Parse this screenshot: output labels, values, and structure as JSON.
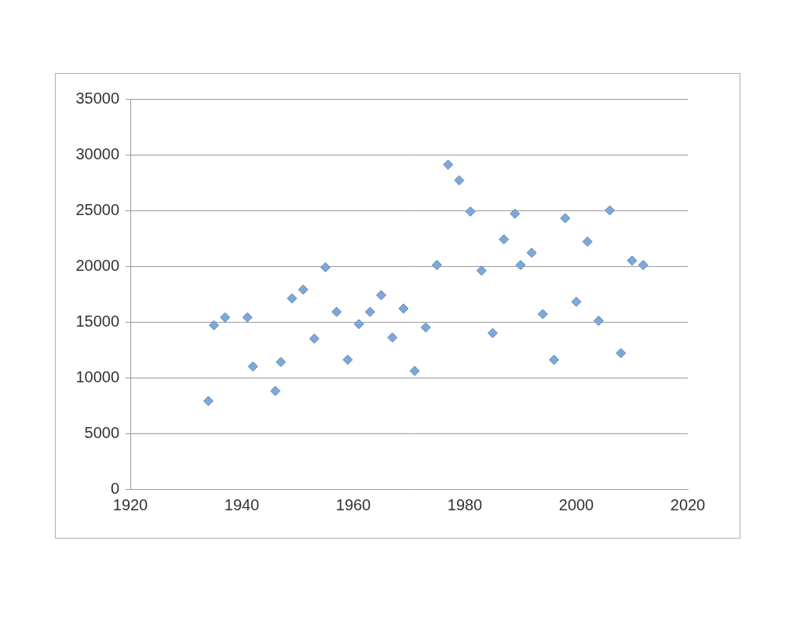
{
  "chart_data": {
    "type": "scatter",
    "x": [
      1934,
      1935,
      1937,
      1941,
      1942,
      1946,
      1947,
      1949,
      1951,
      1953,
      1955,
      1957,
      1959,
      1961,
      1963,
      1965,
      1967,
      1969,
      1971,
      1973,
      1975,
      1977,
      1979,
      1981,
      1983,
      1985,
      1987,
      1989,
      1990,
      1992,
      1994,
      1996,
      1998,
      2000,
      2002,
      2004,
      2006,
      2008,
      2010,
      2012
    ],
    "values": [
      7900,
      14700,
      15400,
      15400,
      11000,
      8800,
      11400,
      17100,
      17900,
      13500,
      19900,
      15900,
      11600,
      14800,
      15900,
      17400,
      13600,
      16200,
      10600,
      14500,
      20100,
      29100,
      27700,
      24900,
      19600,
      14000,
      22400,
      24700,
      20100,
      21200,
      15700,
      11600,
      24300,
      16800,
      22200,
      15100,
      25000,
      12200,
      20500,
      20100
    ],
    "color": "#7fa8d9",
    "marker": "diamond",
    "xlim": [
      1920,
      2020
    ],
    "xticks": [
      1920,
      1940,
      1960,
      1980,
      2000,
      2020
    ],
    "ylim": [
      0,
      35000
    ],
    "yticks": [
      0,
      5000,
      10000,
      15000,
      20000,
      25000,
      30000,
      35000
    ],
    "grid": "y"
  }
}
